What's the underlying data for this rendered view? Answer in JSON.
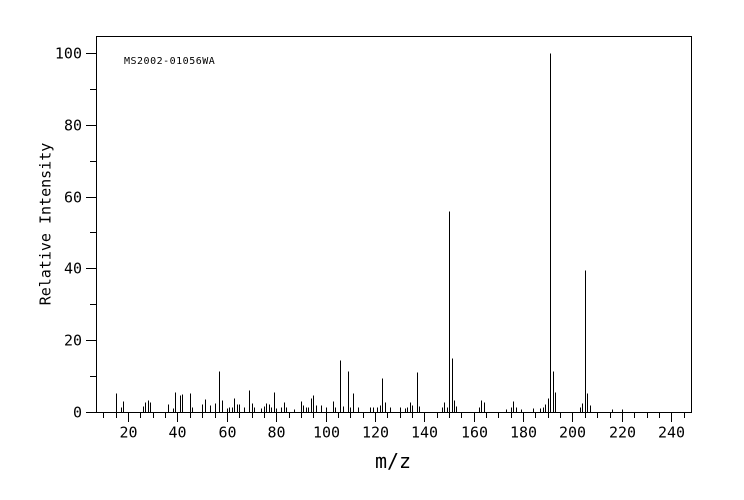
{
  "chart_data": {
    "type": "bar",
    "subtype": "mass-spectrum-stick-plot",
    "annotation": "MS2002-01056WA",
    "xlabel": "m/z",
    "ylabel": "Relative Intensity",
    "xlim": [
      7,
      248
    ],
    "ylim": [
      0,
      104.7
    ],
    "x_major_ticks": [
      20,
      40,
      60,
      80,
      100,
      120,
      140,
      160,
      180,
      200,
      220,
      240
    ],
    "x_minor_step": 5,
    "y_major_ticks": [
      0,
      20,
      40,
      60,
      80,
      100
    ],
    "y_minor_step": 10,
    "grid": false,
    "legend": false,
    "background": "#ffffff",
    "line_color": "#000000",
    "peaks": [
      [
        15,
        5.4
      ],
      [
        17,
        1.4
      ],
      [
        18,
        3.0
      ],
      [
        26,
        1.6
      ],
      [
        27,
        2.9
      ],
      [
        28,
        3.4
      ],
      [
        29,
        2.8
      ],
      [
        36,
        2.3
      ],
      [
        38,
        1.0
      ],
      [
        39,
        5.5
      ],
      [
        41,
        4.8
      ],
      [
        42,
        5.0
      ],
      [
        45,
        5.3
      ],
      [
        46,
        1.4
      ],
      [
        50,
        2.3
      ],
      [
        51,
        3.7
      ],
      [
        53,
        2.0
      ],
      [
        55,
        2.5
      ],
      [
        57,
        11.3
      ],
      [
        58,
        3.3
      ],
      [
        60,
        1.0
      ],
      [
        61,
        1.3
      ],
      [
        62,
        1.5
      ],
      [
        63,
        4.0
      ],
      [
        64,
        2.3
      ],
      [
        65,
        2.2
      ],
      [
        67,
        1.5
      ],
      [
        69,
        6.1
      ],
      [
        70,
        2.6
      ],
      [
        71,
        1.3
      ],
      [
        74,
        1.2
      ],
      [
        75,
        1.8
      ],
      [
        76,
        2.5
      ],
      [
        77,
        2.3
      ],
      [
        78,
        1.3
      ],
      [
        79,
        5.5
      ],
      [
        80,
        1.2
      ],
      [
        82,
        1.5
      ],
      [
        83,
        2.7
      ],
      [
        84,
        1.3
      ],
      [
        87,
        0.9
      ],
      [
        90,
        3.0
      ],
      [
        91,
        2.0
      ],
      [
        92,
        1.5
      ],
      [
        93,
        1.5
      ],
      [
        94,
        3.9
      ],
      [
        95,
        4.6
      ],
      [
        96,
        1.9
      ],
      [
        98,
        1.9
      ],
      [
        100,
        1.4
      ],
      [
        103,
        3.1
      ],
      [
        104,
        1.3
      ],
      [
        106,
        14.6
      ],
      [
        107,
        1.8
      ],
      [
        109,
        11.3
      ],
      [
        110,
        1.4
      ],
      [
        111,
        5.3
      ],
      [
        113,
        1.4
      ],
      [
        118,
        1.3
      ],
      [
        119,
        1.4
      ],
      [
        121,
        1.4
      ],
      [
        122,
        1.9
      ],
      [
        123,
        9.5
      ],
      [
        124,
        2.8
      ],
      [
        126,
        1.4
      ],
      [
        130,
        1.4
      ],
      [
        132,
        1.0
      ],
      [
        133,
        1.4
      ],
      [
        134,
        2.8
      ],
      [
        135,
        1.9
      ],
      [
        137,
        11.0
      ],
      [
        138,
        1.7
      ],
      [
        147,
        1.4
      ],
      [
        148,
        2.8
      ],
      [
        149,
        1.4
      ],
      [
        150,
        56.0
      ],
      [
        151,
        15.0
      ],
      [
        152,
        3.3
      ],
      [
        153,
        1.7
      ],
      [
        162,
        1.5
      ],
      [
        163,
        3.3
      ],
      [
        164,
        2.8
      ],
      [
        173,
        0.8
      ],
      [
        175,
        1.3
      ],
      [
        176,
        3.0
      ],
      [
        177,
        1.4
      ],
      [
        179,
        0.9
      ],
      [
        184,
        1.1
      ],
      [
        187,
        1.1
      ],
      [
        188,
        1.4
      ],
      [
        189,
        2.2
      ],
      [
        190,
        4.0
      ],
      [
        191,
        100.0
      ],
      [
        192,
        11.4
      ],
      [
        193,
        5.6
      ],
      [
        203,
        1.5
      ],
      [
        204,
        2.5
      ],
      [
        205,
        39.5
      ],
      [
        206,
        5.3
      ],
      [
        207,
        2.0
      ],
      [
        216,
        0.8
      ],
      [
        220,
        0.8
      ]
    ]
  }
}
